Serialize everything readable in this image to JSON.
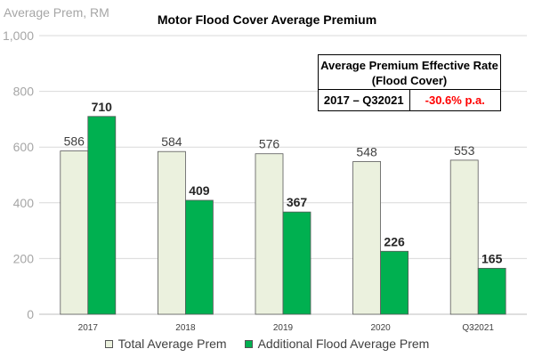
{
  "chart_data": {
    "type": "bar",
    "title": "Motor Flood Cover Average Premium",
    "ylabel": "Average Prem, RM",
    "ylim": [
      0,
      1000
    ],
    "yticks": [
      0,
      200,
      400,
      600,
      800,
      1000
    ],
    "ytick_labels": [
      "0",
      "200",
      "400",
      "600",
      "800",
      "1,000"
    ],
    "categories": [
      "2017",
      "2018",
      "2019",
      "2020",
      "Q32021"
    ],
    "series": [
      {
        "name": "Total Average Prem",
        "values": [
          586,
          584,
          576,
          548,
          553
        ],
        "color": "#ebf1de",
        "label_bold": false
      },
      {
        "name": "Additional Flood Average Prem",
        "values": [
          710,
          409,
          367,
          226,
          165
        ],
        "color": "#00b050",
        "label_bold": true
      }
    ],
    "grid": true,
    "legend_position": "bottom"
  },
  "rate_box": {
    "header": "Average Premium Effective Rate (Flood Cover)",
    "period": "2017 – Q32021",
    "rate": "-30.6% p.a.",
    "rate_color": "#ff0000"
  }
}
